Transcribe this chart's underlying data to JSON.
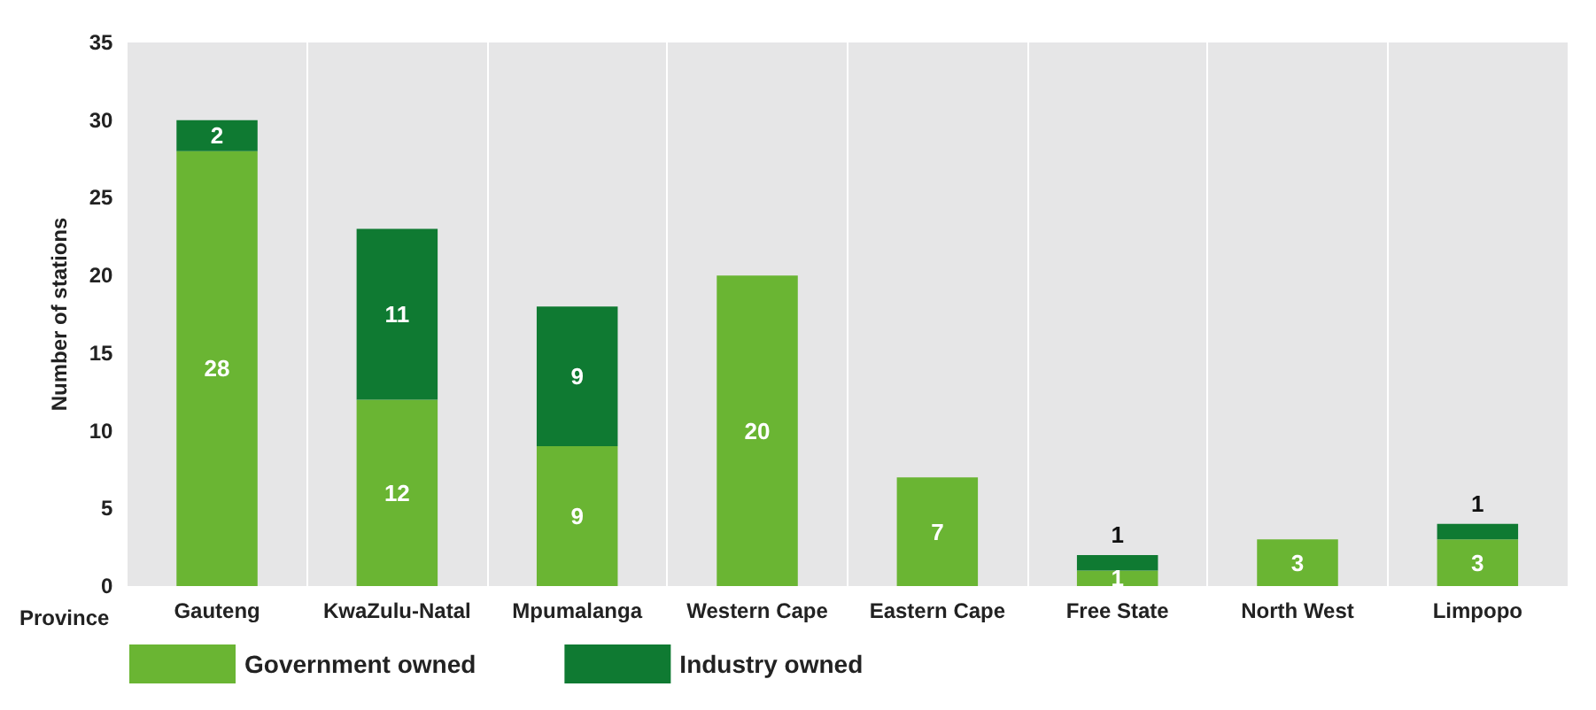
{
  "chart_data": {
    "type": "bar",
    "stacked": true,
    "xlabel": "Province",
    "ylabel": "Number of stations",
    "categories": [
      "Gauteng",
      "KwaZulu-Natal",
      "Mpumalanga",
      "Western Cape",
      "Eastern Cape",
      "Free State",
      "North West",
      "Limpopo"
    ],
    "series": [
      {
        "name": "Government owned",
        "color": "#6ab533",
        "values": [
          28,
          12,
          9,
          20,
          7,
          1,
          3,
          3
        ]
      },
      {
        "name": "Industry owned",
        "color": "#0f7a32",
        "values": [
          2,
          11,
          9,
          null,
          null,
          1,
          null,
          1
        ]
      }
    ],
    "ylim": [
      0,
      35
    ],
    "yticks": [
      0,
      5,
      10,
      15,
      20,
      25,
      30,
      35
    ],
    "grid": "x",
    "legend": "bottom left",
    "data_labels": true
  }
}
